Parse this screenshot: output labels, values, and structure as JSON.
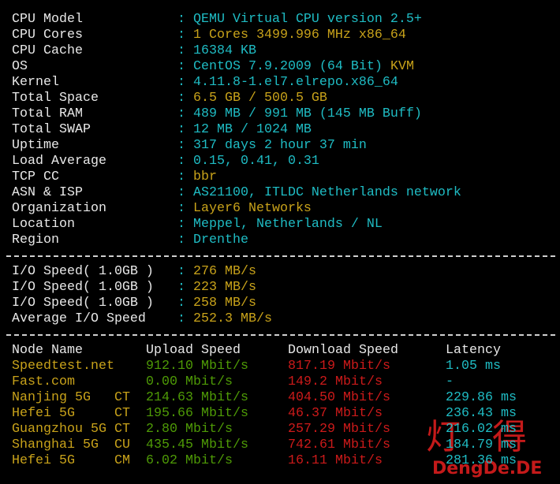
{
  "terminal": {
    "separator": ":",
    "info": [
      {
        "label": "CPU Model",
        "value": "QEMU Virtual CPU version 2.5+",
        "tone": "cyan"
      },
      {
        "label": "CPU Cores",
        "value": "1 Cores 3499.996 MHz x86_64",
        "tone": "yellow"
      },
      {
        "label": "CPU Cache",
        "value": "16384 KB",
        "tone": "cyan"
      },
      {
        "label": "OS",
        "value": "CentOS 7.9.2009 (64 Bit)",
        "tone": "cyan",
        "extra": "KVM"
      },
      {
        "label": "Kernel",
        "value": "4.11.8-1.el7.elrepo.x86_64",
        "tone": "cyan"
      },
      {
        "label": "Total Space",
        "value": "6.5 GB / 500.5 GB",
        "tone": "yellow"
      },
      {
        "label": "Total RAM",
        "value": "489 MB / 991 MB (145 MB Buff)",
        "tone": "cyan"
      },
      {
        "label": "Total SWAP",
        "value": "12 MB / 1024 MB",
        "tone": "cyan"
      },
      {
        "label": "Uptime",
        "value": "317 days 2 hour 37 min",
        "tone": "cyan"
      },
      {
        "label": "Load Average",
        "value": "0.15, 0.41, 0.31",
        "tone": "cyan"
      },
      {
        "label": "TCP CC",
        "value": "bbr",
        "tone": "yellow"
      },
      {
        "label": "ASN & ISP",
        "value": "AS21100, ITLDC Netherlands network",
        "tone": "cyan"
      },
      {
        "label": "Organization",
        "value": "Layer6 Networks",
        "tone": "yellow"
      },
      {
        "label": "Location",
        "value": "Meppel, Netherlands / NL",
        "tone": "cyan"
      },
      {
        "label": "Region",
        "value": "Drenthe",
        "tone": "cyan"
      }
    ],
    "io": [
      {
        "label": "I/O Speed( 1.0GB )",
        "value": "276 MB/s"
      },
      {
        "label": "I/O Speed( 1.0GB )",
        "value": "223 MB/s"
      },
      {
        "label": "I/O Speed( 1.0GB )",
        "value": "258 MB/s"
      },
      {
        "label": "Average I/O Speed",
        "value": "252.3 MB/s"
      }
    ],
    "speed_table": {
      "header": [
        "Node Name",
        "Upload Speed",
        "Download Speed",
        "Latency"
      ],
      "rows": [
        {
          "node": "Speedtest.net",
          "upload": "912.10 Mbit/s",
          "download": "817.19 Mbit/s",
          "latency": "1.05 ms"
        },
        {
          "node": "Fast.com",
          "upload": "0.00 Mbit/s",
          "download": "149.2 Mbit/s",
          "latency": "-"
        },
        {
          "node": "Nanjing 5G",
          "isp": "CT",
          "upload": "214.63 Mbit/s",
          "download": "404.50 Mbit/s",
          "latency": "229.86 ms"
        },
        {
          "node": "Hefei 5G",
          "isp": "CT",
          "upload": "195.66 Mbit/s",
          "download": "46.37 Mbit/s",
          "latency": "236.43 ms"
        },
        {
          "node": "Guangzhou 5G",
          "isp": "CT",
          "upload": "2.80 Mbit/s",
          "download": "257.29 Mbit/s",
          "latency": "216.02 ms"
        },
        {
          "node": "Shanghai 5G",
          "isp": "CU",
          "upload": "435.45 Mbit/s",
          "download": "742.61 Mbit/s",
          "latency": "184.79 ms"
        },
        {
          "node": "Hefei 5G",
          "isp": "CM",
          "upload": "6.02 Mbit/s",
          "download": "16.11 Mbit/s",
          "latency": "281.36 ms"
        }
      ]
    },
    "watermark": {
      "logo": "灯得",
      "site": "DengDe.DE"
    }
  }
}
